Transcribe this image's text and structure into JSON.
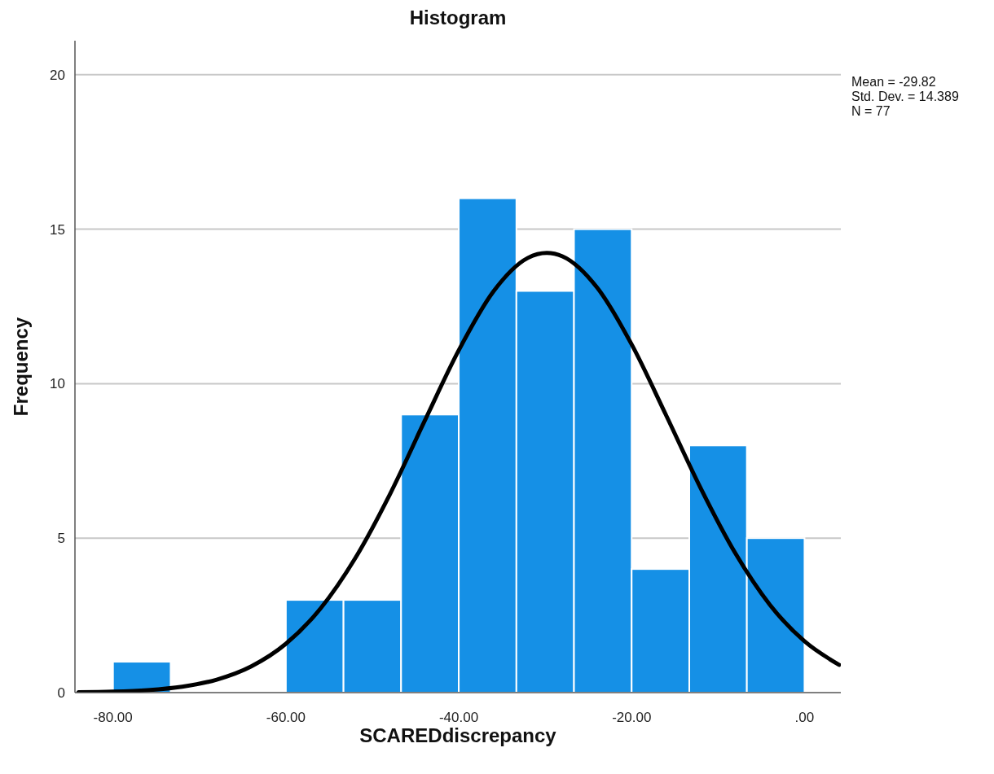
{
  "chart_data": {
    "type": "histogram",
    "title": "Histogram",
    "xlabel": "SCAREDdiscrepancy",
    "ylabel": "Frequency",
    "bins": [
      -80,
      -73.33,
      -66.67,
      -60,
      -53.33,
      -46.67,
      -40,
      -33.33,
      -26.67,
      -20,
      -13.33,
      -6.67,
      0
    ],
    "values": [
      1,
      0,
      0,
      3,
      3,
      9,
      16,
      13,
      15,
      4,
      8,
      5
    ],
    "color": "#1590e6",
    "series": [
      {
        "type": "line",
        "color": "#000000",
        "x": [
          -84,
          -80,
          -76,
          -72,
          -68,
          -64,
          -60,
          -56,
          -52,
          -48,
          -44,
          -40,
          -36,
          -32,
          -29.82,
          -28,
          -24,
          -20,
          -16,
          -12,
          -8,
          -4,
          0,
          4
        ],
        "values": [
          0.01,
          0.03,
          0.08,
          0.19,
          0.42,
          0.85,
          1.58,
          2.72,
          4.34,
          6.4,
          8.76,
          11.08,
          12.98,
          14.07,
          14.23,
          14.12,
          13.11,
          11.27,
          8.97,
          6.61,
          4.51,
          2.84,
          1.66,
          0.9
        ]
      }
    ],
    "xlim": [
      -84.4,
      4.2
    ],
    "ylim": [
      0,
      21.1
    ],
    "xticks": [
      {
        "value": -80,
        "label": "-80.00"
      },
      {
        "value": -60,
        "label": "-60.00"
      },
      {
        "value": -40,
        "label": "-40.00"
      },
      {
        "value": -20,
        "label": "-20.00"
      },
      {
        "value": 0,
        "label": ".00"
      }
    ],
    "yticks": [
      0,
      5,
      10,
      15,
      20
    ],
    "grid": "y",
    "marker": "none",
    "line_style": "solid",
    "annotations": [
      "Mean = -29.82",
      "Std. Dev. = 14.389",
      "N = 77"
    ]
  }
}
